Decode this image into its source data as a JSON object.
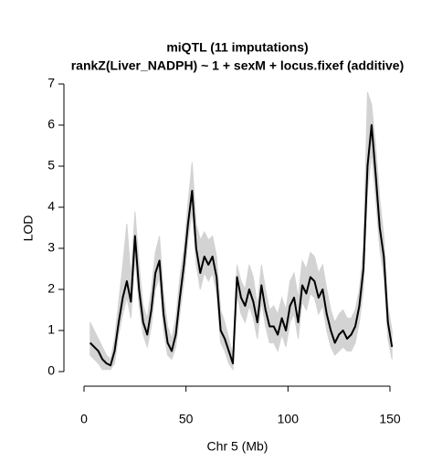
{
  "chart_data": {
    "type": "line",
    "title": "miQTL (11 imputations)",
    "subtitle": "rankZ(Liver_NADPH) ~ 1 + sexM + locus.fixef (additive)",
    "x_label": "Chr 5 (Mb)",
    "y_label": "LOD",
    "x": [
      3,
      5,
      7,
      9,
      11,
      13,
      15,
      17,
      19,
      21,
      23,
      25,
      27,
      29,
      31,
      33,
      35,
      37,
      39,
      41,
      43,
      45,
      47,
      49,
      51,
      53,
      55,
      57,
      59,
      61,
      63,
      65,
      67,
      69,
      71,
      73,
      75,
      77,
      79,
      81,
      83,
      85,
      87,
      89,
      91,
      93,
      95,
      97,
      99,
      101,
      103,
      105,
      107,
      109,
      111,
      113,
      115,
      117,
      119,
      121,
      123,
      125,
      127,
      129,
      131,
      133,
      135,
      137,
      139,
      141,
      143,
      145,
      147,
      149,
      151
    ],
    "series": [
      {
        "color": "#d3d3d3",
        "values": [
          1.2,
          1.0,
          0.8,
          0.6,
          0.4,
          0.3,
          0.8,
          1.7,
          2.6,
          3.6,
          2.3,
          3.9,
          2.6,
          1.6,
          1.3,
          2.0,
          2.9,
          3.3,
          1.9,
          1.1,
          0.8,
          1.3,
          2.3,
          3.0,
          4.1,
          5.1,
          3.6,
          3.2,
          3.4,
          3.2,
          3.3,
          2.8,
          1.5,
          1.2,
          0.8,
          0.4,
          2.6,
          2.2,
          2.0,
          2.6,
          2.3,
          1.6,
          2.6,
          2.0,
          1.5,
          1.6,
          1.4,
          1.8,
          1.5,
          2.2,
          2.4,
          1.8,
          2.7,
          2.5,
          2.9,
          2.8,
          2.4,
          2.6,
          2.0,
          1.5,
          1.2,
          1.4,
          1.5,
          1.3,
          1.3,
          1.5,
          2.0,
          3.0,
          6.8,
          6.5,
          5.5,
          4.2,
          3.3,
          1.6,
          1.0
        ]
      },
      {
        "color": "#d3d3d3",
        "values": [
          0.4,
          0.3,
          0.2,
          0.05,
          0.05,
          0.05,
          0.2,
          0.9,
          1.4,
          1.8,
          1.3,
          2.8,
          1.6,
          0.9,
          0.6,
          1.1,
          2.0,
          2.3,
          1.0,
          0.4,
          0.3,
          0.6,
          1.4,
          2.2,
          3.2,
          3.9,
          2.6,
          2.0,
          2.4,
          2.2,
          2.4,
          1.9,
          0.7,
          0.5,
          0.2,
          0.05,
          1.9,
          1.4,
          1.2,
          1.6,
          1.3,
          0.8,
          1.7,
          1.1,
          0.7,
          0.7,
          0.5,
          0.9,
          0.6,
          1.2,
          1.4,
          0.8,
          1.7,
          1.5,
          1.9,
          1.8,
          1.4,
          1.6,
          1.0,
          0.6,
          0.4,
          0.5,
          0.6,
          0.5,
          0.5,
          0.7,
          1.2,
          2.0,
          4.4,
          5.3,
          4.2,
          3.0,
          2.3,
          0.8,
          0.3
        ]
      },
      {
        "color": "#000000",
        "values": [
          0.7,
          0.6,
          0.5,
          0.3,
          0.2,
          0.15,
          0.5,
          1.2,
          1.8,
          2.2,
          1.7,
          3.3,
          2.0,
          1.2,
          0.9,
          1.5,
          2.4,
          2.7,
          1.4,
          0.7,
          0.5,
          0.9,
          1.8,
          2.6,
          3.6,
          4.4,
          3.0,
          2.4,
          2.8,
          2.6,
          2.8,
          2.3,
          1.0,
          0.8,
          0.5,
          0.2,
          2.3,
          1.8,
          1.6,
          2.0,
          1.7,
          1.2,
          2.1,
          1.5,
          1.1,
          1.1,
          0.9,
          1.3,
          1.0,
          1.6,
          1.8,
          1.2,
          2.1,
          1.9,
          2.3,
          2.2,
          1.8,
          2.0,
          1.4,
          1.0,
          0.7,
          0.9,
          1.0,
          0.8,
          0.9,
          1.1,
          1.6,
          2.5,
          5.0,
          6.0,
          4.8,
          3.5,
          2.8,
          1.2,
          0.6
        ]
      }
    ],
    "xlim": [
      0,
      150
    ],
    "ylim": [
      0,
      7
    ],
    "xticks": [
      0,
      50,
      100,
      150
    ],
    "yticks": [
      0,
      1,
      2,
      3,
      4,
      5,
      6,
      7
    ]
  }
}
